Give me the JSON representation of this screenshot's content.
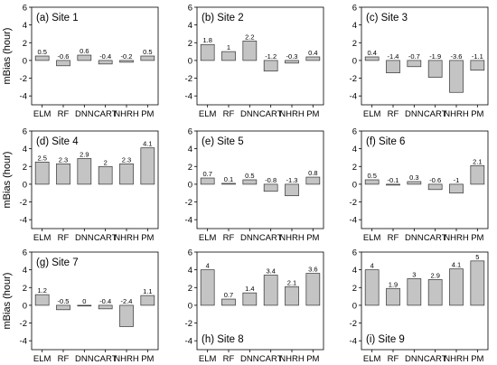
{
  "colors": {
    "bar_fill": "#c4c4c4",
    "bar_stroke": "#333333",
    "axis": "#000000"
  },
  "y_axis_label": "mBias (hour)",
  "chart_data": [
    {
      "type": "bar",
      "title": "(a) Site 1",
      "title_position": "top-left",
      "categories": [
        "ELM",
        "RF",
        "DNN",
        "CART",
        "NHRH",
        "PM"
      ],
      "values": [
        0.5,
        -0.6,
        0.6,
        -0.4,
        -0.2,
        0.5
      ],
      "value_labels": [
        "0.5",
        "-0.6",
        "0.6",
        "-0.4",
        "-0.2",
        "0.5"
      ],
      "ylim": [
        -5,
        6
      ],
      "yticks": [
        -4,
        -2,
        0,
        2,
        4,
        6
      ],
      "grid": false
    },
    {
      "type": "bar",
      "title": "(b) Site 2",
      "title_position": "top-left",
      "categories": [
        "ELM",
        "RF",
        "DNN",
        "CART",
        "NHRH",
        "PM"
      ],
      "values": [
        1.8,
        1,
        2.2,
        -1.2,
        -0.3,
        0.4
      ],
      "value_labels": [
        "1.8",
        "1",
        "2.2",
        "-1.2",
        "-0.3",
        "0.4"
      ],
      "ylim": [
        -5,
        6
      ],
      "yticks": [
        -4,
        -2,
        0,
        2,
        4,
        6
      ],
      "grid": false
    },
    {
      "type": "bar",
      "title": "(c) Site 3",
      "title_position": "top-left",
      "categories": [
        "ELM",
        "RF",
        "DNN",
        "CART",
        "NHRH",
        "PM"
      ],
      "values": [
        0.4,
        -1.4,
        -0.7,
        -1.9,
        -3.6,
        -1.1
      ],
      "value_labels": [
        "0.4",
        "-1.4",
        "-0.7",
        "-1.9",
        "-3.6",
        "-1.1"
      ],
      "ylim": [
        -5,
        6
      ],
      "yticks": [
        -4,
        -2,
        0,
        2,
        4,
        6
      ],
      "grid": false
    },
    {
      "type": "bar",
      "title": "(d) Site 4",
      "title_position": "top-left",
      "categories": [
        "ELM",
        "RF",
        "DNN",
        "CART",
        "NHRH",
        "PM"
      ],
      "values": [
        2.5,
        2.3,
        2.9,
        2,
        2.3,
        4.1
      ],
      "value_labels": [
        "2.5",
        "2.3",
        "2.9",
        "2",
        "2.3",
        "4.1"
      ],
      "ylim": [
        -5,
        6
      ],
      "yticks": [
        -4,
        -2,
        0,
        2,
        4,
        6
      ],
      "grid": false
    },
    {
      "type": "bar",
      "title": "(e) Site 5",
      "title_position": "top-left",
      "categories": [
        "ELM",
        "RF",
        "DNN",
        "CART",
        "NHRH",
        "PM"
      ],
      "values": [
        0.7,
        0.1,
        0.5,
        -0.8,
        -1.3,
        0.8
      ],
      "value_labels": [
        "0.7",
        "0.1",
        "0.5",
        "-0.8",
        "-1.3",
        "0.8"
      ],
      "ylim": [
        -5,
        6
      ],
      "yticks": [
        -4,
        -2,
        0,
        2,
        4,
        6
      ],
      "grid": false
    },
    {
      "type": "bar",
      "title": "(f) Site 6",
      "title_position": "top-left",
      "categories": [
        "ELM",
        "RF",
        "DNN",
        "CART",
        "NHRH",
        "PM"
      ],
      "values": [
        0.5,
        -0.1,
        0.3,
        -0.6,
        -1,
        2.1
      ],
      "value_labels": [
        "0.5",
        "-0.1",
        "0.3",
        "-0.6",
        "-1",
        "2.1"
      ],
      "ylim": [
        -5,
        6
      ],
      "yticks": [
        -4,
        -2,
        0,
        2,
        4,
        6
      ],
      "grid": false
    },
    {
      "type": "bar",
      "title": "(g) Site 7",
      "title_position": "top-left",
      "categories": [
        "ELM",
        "RF",
        "DNN",
        "CART",
        "NHRH",
        "PM"
      ],
      "values": [
        1.2,
        -0.5,
        0,
        -0.4,
        -2.4,
        1.1
      ],
      "value_labels": [
        "1.2",
        "-0.5",
        "0",
        "-0.4",
        "-2.4",
        "1.1"
      ],
      "ylim": [
        -5,
        6
      ],
      "yticks": [
        -4,
        -2,
        0,
        2,
        4,
        6
      ],
      "grid": false
    },
    {
      "type": "bar",
      "title": "(h) Site 8",
      "title_position": "bottom-left",
      "categories": [
        "ELM",
        "RF",
        "DNN",
        "CART",
        "NHRH",
        "PM"
      ],
      "values": [
        4,
        0.7,
        1.4,
        3.4,
        2.1,
        3.6
      ],
      "value_labels": [
        "4",
        "0.7",
        "1.4",
        "3.4",
        "2.1",
        "3.6"
      ],
      "ylim": [
        -5,
        6
      ],
      "yticks": [
        -4,
        -2,
        0,
        2,
        4,
        6
      ],
      "grid": false
    },
    {
      "type": "bar",
      "title": "(i) Site 9",
      "title_position": "bottom-left",
      "categories": [
        "ELM",
        "RF",
        "DNN",
        "CART",
        "NHRH",
        "PM"
      ],
      "values": [
        4,
        1.9,
        3,
        2.9,
        4.1,
        5
      ],
      "value_labels": [
        "4",
        "1.9",
        "3",
        "2.9",
        "4.1",
        "5"
      ],
      "ylim": [
        -5,
        6
      ],
      "yticks": [
        -4,
        -2,
        0,
        2,
        4,
        6
      ],
      "grid": false
    }
  ]
}
